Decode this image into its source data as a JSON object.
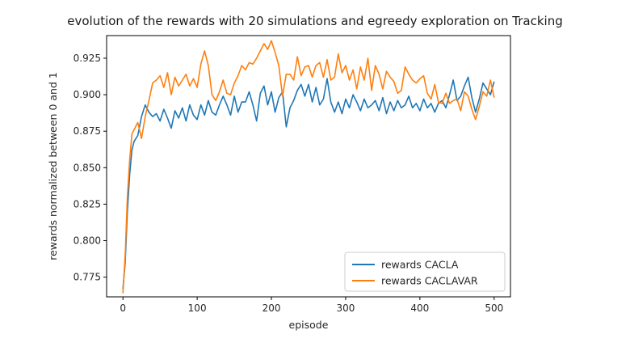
{
  "chart_data": {
    "type": "line",
    "title": "evolution of the rewards with 20 simulations and egreedy exploration on Tracking",
    "xlabel": "episode",
    "ylabel": "rewards normalized between 0 and 1",
    "xlim": [
      -22,
      522
    ],
    "ylim": [
      0.7615,
      0.9405
    ],
    "xticks": [
      0,
      100,
      200,
      300,
      400,
      500
    ],
    "yticks": [
      0.775,
      0.8,
      0.825,
      0.85,
      0.875,
      0.9,
      0.925
    ],
    "ytick_labels": [
      "0.775",
      "0.800",
      "0.825",
      "0.850",
      "0.875",
      "0.900",
      "0.925"
    ],
    "grid": false,
    "legend_position": "lower-right",
    "series": [
      {
        "name": "rewards CACLA",
        "color": "#1f77b4",
        "x": [
          0,
          3,
          6,
          9,
          12,
          15,
          20,
          25,
          30,
          35,
          40,
          45,
          50,
          55,
          60,
          65,
          70,
          75,
          80,
          85,
          90,
          95,
          100,
          105,
          110,
          115,
          120,
          125,
          130,
          135,
          140,
          145,
          150,
          155,
          160,
          165,
          170,
          175,
          180,
          185,
          190,
          195,
          200,
          205,
          210,
          215,
          220,
          225,
          230,
          235,
          240,
          245,
          250,
          255,
          260,
          265,
          270,
          275,
          280,
          285,
          290,
          295,
          300,
          305,
          310,
          315,
          320,
          325,
          330,
          335,
          340,
          345,
          350,
          355,
          360,
          365,
          370,
          375,
          380,
          385,
          390,
          395,
          400,
          405,
          410,
          415,
          420,
          425,
          430,
          435,
          440,
          445,
          450,
          455,
          460,
          465,
          470,
          475,
          480,
          485,
          490,
          495,
          500
        ],
        "y": [
          0.767,
          0.785,
          0.82,
          0.845,
          0.862,
          0.868,
          0.872,
          0.885,
          0.893,
          0.888,
          0.885,
          0.887,
          0.882,
          0.89,
          0.884,
          0.877,
          0.889,
          0.884,
          0.891,
          0.882,
          0.893,
          0.886,
          0.883,
          0.893,
          0.886,
          0.896,
          0.888,
          0.886,
          0.893,
          0.899,
          0.893,
          0.886,
          0.899,
          0.888,
          0.895,
          0.895,
          0.902,
          0.893,
          0.882,
          0.901,
          0.906,
          0.893,
          0.902,
          0.888,
          0.898,
          0.902,
          0.878,
          0.891,
          0.896,
          0.903,
          0.907,
          0.899,
          0.907,
          0.895,
          0.905,
          0.893,
          0.897,
          0.911,
          0.895,
          0.888,
          0.895,
          0.887,
          0.897,
          0.891,
          0.9,
          0.895,
          0.889,
          0.897,
          0.891,
          0.893,
          0.896,
          0.889,
          0.898,
          0.887,
          0.895,
          0.889,
          0.896,
          0.891,
          0.893,
          0.899,
          0.891,
          0.894,
          0.889,
          0.897,
          0.891,
          0.894,
          0.888,
          0.894,
          0.896,
          0.891,
          0.9,
          0.91,
          0.896,
          0.899,
          0.906,
          0.912,
          0.898,
          0.888,
          0.897,
          0.908,
          0.904,
          0.9,
          0.909
        ]
      },
      {
        "name": "rewards CACLAVAR",
        "color": "#ff7f0e",
        "x": [
          0,
          3,
          6,
          9,
          12,
          15,
          20,
          25,
          30,
          35,
          40,
          45,
          50,
          55,
          60,
          65,
          70,
          75,
          80,
          85,
          90,
          95,
          100,
          105,
          110,
          115,
          120,
          125,
          130,
          135,
          140,
          145,
          150,
          155,
          160,
          165,
          170,
          175,
          180,
          185,
          190,
          195,
          200,
          205,
          210,
          215,
          220,
          225,
          230,
          235,
          240,
          245,
          250,
          255,
          260,
          265,
          270,
          275,
          280,
          285,
          290,
          295,
          300,
          305,
          310,
          315,
          320,
          325,
          330,
          335,
          340,
          345,
          350,
          355,
          360,
          365,
          370,
          375,
          380,
          385,
          390,
          395,
          400,
          405,
          410,
          415,
          420,
          425,
          430,
          435,
          440,
          445,
          450,
          455,
          460,
          465,
          470,
          475,
          480,
          485,
          490,
          495,
          500
        ],
        "y": [
          0.764,
          0.79,
          0.83,
          0.855,
          0.873,
          0.876,
          0.881,
          0.87,
          0.885,
          0.896,
          0.908,
          0.91,
          0.913,
          0.905,
          0.915,
          0.9,
          0.912,
          0.906,
          0.91,
          0.914,
          0.906,
          0.911,
          0.905,
          0.921,
          0.93,
          0.92,
          0.9,
          0.896,
          0.902,
          0.91,
          0.901,
          0.9,
          0.908,
          0.913,
          0.92,
          0.917,
          0.922,
          0.921,
          0.925,
          0.93,
          0.935,
          0.931,
          0.937,
          0.929,
          0.92,
          0.899,
          0.914,
          0.914,
          0.91,
          0.926,
          0.913,
          0.919,
          0.92,
          0.912,
          0.92,
          0.922,
          0.912,
          0.924,
          0.91,
          0.912,
          0.928,
          0.915,
          0.92,
          0.91,
          0.917,
          0.904,
          0.919,
          0.91,
          0.925,
          0.903,
          0.92,
          0.914,
          0.904,
          0.916,
          0.912,
          0.909,
          0.901,
          0.903,
          0.919,
          0.914,
          0.91,
          0.908,
          0.911,
          0.913,
          0.901,
          0.897,
          0.907,
          0.895,
          0.894,
          0.901,
          0.894,
          0.896,
          0.897,
          0.889,
          0.902,
          0.899,
          0.89,
          0.883,
          0.892,
          0.902,
          0.899,
          0.91,
          0.898
        ]
      }
    ]
  }
}
